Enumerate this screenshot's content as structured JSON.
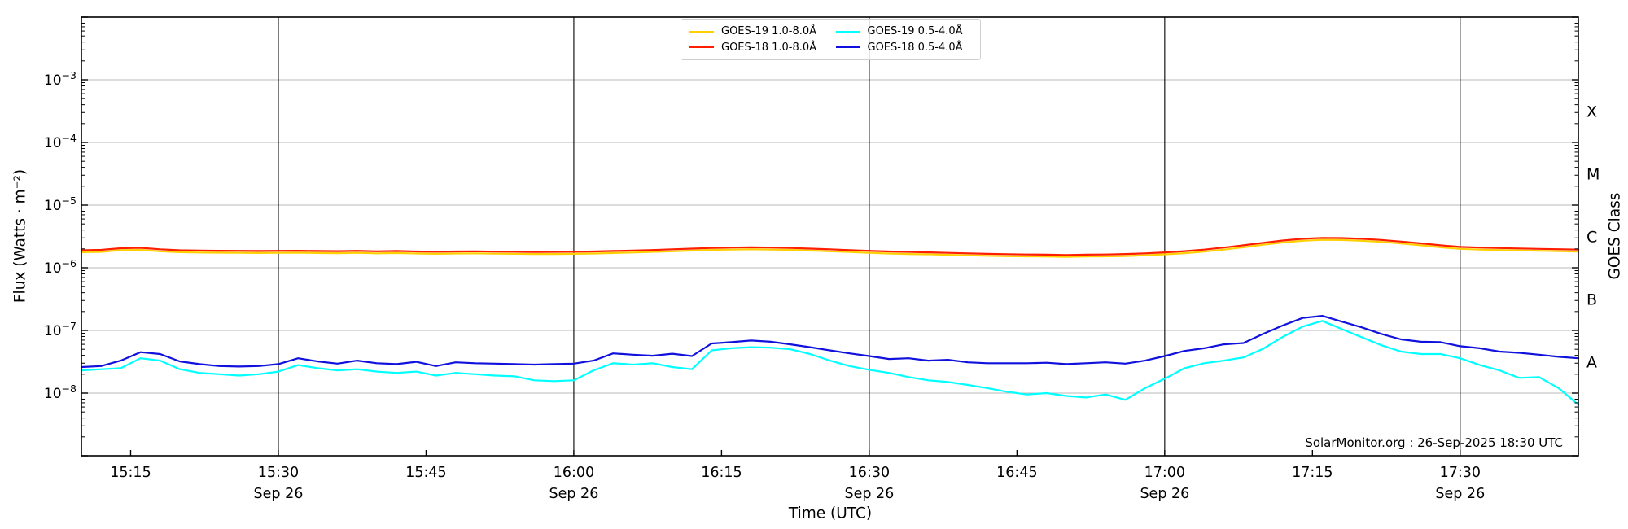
{
  "labels": {
    "x_axis": "Time (UTC)",
    "y_axis_left": "Flux (Watts · m⁻²)",
    "y_axis_right": "GOES Class",
    "annotation": "SolarMonitor.org : 26-Sep-2025 18:30 UTC"
  },
  "legend": {
    "items": [
      {
        "label": "GOES-19 1.0-8.0Å",
        "color": "#ffd000"
      },
      {
        "label": "GOES-18 1.0-8.0Å",
        "color": "#ff1e00"
      },
      {
        "label": "GOES-19 0.5-4.0Å",
        "color": "#00ffff"
      },
      {
        "label": "GOES-18 0.5-4.0Å",
        "color": "#1111dd"
      }
    ]
  },
  "chart_data": {
    "type": "line",
    "x_axis": {
      "label": "Time (UTC)",
      "date": "Sep 26",
      "window_start": "15:10",
      "window_end": "17:42",
      "minutes_origin": "15:10",
      "major_ticks": [
        {
          "minute": 5,
          "label": "15:15",
          "sub_label": null,
          "gridline": false
        },
        {
          "minute": 20,
          "label": "15:30",
          "sub_label": "Sep 26",
          "gridline": true
        },
        {
          "minute": 35,
          "label": "15:45",
          "sub_label": null,
          "gridline": false
        },
        {
          "minute": 50,
          "label": "16:00",
          "sub_label": "Sep 26",
          "gridline": true
        },
        {
          "minute": 65,
          "label": "16:15",
          "sub_label": null,
          "gridline": false
        },
        {
          "minute": 80,
          "label": "16:30",
          "sub_label": "Sep 26",
          "gridline": true
        },
        {
          "minute": 95,
          "label": "16:45",
          "sub_label": null,
          "gridline": false
        },
        {
          "minute": 110,
          "label": "17:00",
          "sub_label": "Sep 26",
          "gridline": true
        },
        {
          "minute": 125,
          "label": "17:15",
          "sub_label": null,
          "gridline": false
        },
        {
          "minute": 140,
          "label": "17:30",
          "sub_label": "Sep 26",
          "gridline": true
        }
      ]
    },
    "y_axis": {
      "label": "Flux (Watts · m⁻²)",
      "scale": "log",
      "min": 1e-09,
      "max": 0.01,
      "labeled_tick_exponents": [
        -3,
        -4,
        -5,
        -6,
        -7,
        -8
      ],
      "grid": true
    },
    "right_axis": {
      "label": "GOES Class",
      "class_bands": [
        {
          "label": "X",
          "mid_exponent": -3.5
        },
        {
          "label": "M",
          "mid_exponent": -4.5
        },
        {
          "label": "C",
          "mid_exponent": -5.5
        },
        {
          "label": "B",
          "mid_exponent": -6.5
        },
        {
          "label": "A",
          "mid_exponent": -7.5
        }
      ]
    },
    "annotation": "SolarMonitor.org : 26-Sep-2025 18:30 UTC",
    "x_minutes": [
      0,
      2,
      4,
      6,
      8,
      10,
      12,
      14,
      16,
      18,
      20,
      22,
      24,
      26,
      28,
      30,
      32,
      34,
      36,
      38,
      40,
      42,
      44,
      46,
      48,
      50,
      52,
      54,
      56,
      58,
      60,
      62,
      64,
      66,
      68,
      70,
      72,
      74,
      76,
      78,
      80,
      82,
      84,
      86,
      88,
      90,
      92,
      94,
      96,
      98,
      100,
      102,
      104,
      106,
      108,
      110,
      112,
      114,
      116,
      118,
      120,
      122,
      124,
      126,
      128,
      130,
      132,
      134,
      136,
      138,
      140,
      142,
      144,
      146,
      148,
      150,
      152
    ],
    "series": [
      {
        "name": "GOES-19 1.0-8.0Å",
        "color": "#ffd000",
        "values_w_m2": [
          1.77e-06,
          1.79e-06,
          1.91e-06,
          1.93e-06,
          1.83e-06,
          1.77e-06,
          1.75e-06,
          1.74e-06,
          1.73e-06,
          1.72e-06,
          1.73e-06,
          1.74e-06,
          1.72e-06,
          1.71e-06,
          1.73e-06,
          1.7e-06,
          1.72e-06,
          1.69e-06,
          1.67e-06,
          1.69e-06,
          1.7e-06,
          1.68e-06,
          1.67e-06,
          1.66e-06,
          1.66e-06,
          1.67e-06,
          1.69e-06,
          1.72e-06,
          1.75e-06,
          1.79e-06,
          1.83e-06,
          1.88e-06,
          1.93e-06,
          1.95e-06,
          1.97e-06,
          1.95e-06,
          1.93e-06,
          1.88e-06,
          1.83e-06,
          1.78e-06,
          1.73e-06,
          1.69e-06,
          1.66e-06,
          1.64e-06,
          1.61e-06,
          1.58e-06,
          1.55e-06,
          1.53e-06,
          1.52e-06,
          1.51e-06,
          1.49e-06,
          1.51e-06,
          1.52e-06,
          1.54e-06,
          1.58e-06,
          1.64e-06,
          1.71e-06,
          1.81e-06,
          1.95e-06,
          2.12e-06,
          2.33e-06,
          2.53e-06,
          2.7e-06,
          2.79e-06,
          2.77e-06,
          2.7e-06,
          2.59e-06,
          2.44e-06,
          2.28e-06,
          2.12e-06,
          2e-06,
          1.95e-06,
          1.92e-06,
          1.89e-06,
          1.86e-06,
          1.84e-06,
          1.81e-06
        ]
      },
      {
        "name": "GOES-18 1.0-8.0Å",
        "color": "#ff1e00",
        "values_w_m2": [
          1.9e-06,
          1.93e-06,
          2.05e-06,
          2.08e-06,
          1.97e-06,
          1.9e-06,
          1.88e-06,
          1.87e-06,
          1.86e-06,
          1.85e-06,
          1.86e-06,
          1.87e-06,
          1.85e-06,
          1.84e-06,
          1.86e-06,
          1.83e-06,
          1.85e-06,
          1.82e-06,
          1.8e-06,
          1.82e-06,
          1.83e-06,
          1.81e-06,
          1.8e-06,
          1.78e-06,
          1.79e-06,
          1.8e-06,
          1.82e-06,
          1.85e-06,
          1.88e-06,
          1.92e-06,
          1.97e-06,
          2.02e-06,
          2.07e-06,
          2.1e-06,
          2.12e-06,
          2.1e-06,
          2.07e-06,
          2.02e-06,
          1.97e-06,
          1.91e-06,
          1.86e-06,
          1.82e-06,
          1.79e-06,
          1.76e-06,
          1.73e-06,
          1.7e-06,
          1.67e-06,
          1.65e-06,
          1.63e-06,
          1.62e-06,
          1.6e-06,
          1.62e-06,
          1.63e-06,
          1.66e-06,
          1.7e-06,
          1.76e-06,
          1.84e-06,
          1.95e-06,
          2.1e-06,
          2.28e-06,
          2.5e-06,
          2.72e-06,
          2.9e-06,
          3e-06,
          2.98e-06,
          2.9e-06,
          2.78e-06,
          2.62e-06,
          2.45e-06,
          2.28e-06,
          2.15e-06,
          2.1e-06,
          2.06e-06,
          2.03e-06,
          2e-06,
          1.98e-06,
          1.95e-06
        ]
      },
      {
        "name": "GOES-19 0.5-4.0Å",
        "color": "#00ffff",
        "values_w_m2": [
          2.3e-08,
          2.4e-08,
          2.5e-08,
          3.6e-08,
          3.3e-08,
          2.4e-08,
          2.1e-08,
          2e-08,
          1.9e-08,
          2e-08,
          2.2e-08,
          2.8e-08,
          2.5e-08,
          2.3e-08,
          2.4e-08,
          2.2e-08,
          2.1e-08,
          2.2e-08,
          1.9e-08,
          2.1e-08,
          2e-08,
          1.9e-08,
          1.85e-08,
          1.6e-08,
          1.55e-08,
          1.6e-08,
          2.3e-08,
          3e-08,
          2.85e-08,
          3e-08,
          2.6e-08,
          2.4e-08,
          4.8e-08,
          5.2e-08,
          5.4e-08,
          5.3e-08,
          5e-08,
          4.2e-08,
          3.3e-08,
          2.7e-08,
          2.35e-08,
          2.1e-08,
          1.8e-08,
          1.6e-08,
          1.5e-08,
          1.35e-08,
          1.2e-08,
          1.05e-08,
          9.5e-09,
          1e-08,
          9e-09,
          8.5e-09,
          9.5e-09,
          7.8e-09,
          1.2e-08,
          1.7e-08,
          2.5e-08,
          3e-08,
          3.3e-08,
          3.7e-08,
          5.1e-08,
          7.9e-08,
          1.15e-07,
          1.42e-07,
          1.05e-07,
          7.8e-08,
          5.8e-08,
          4.6e-08,
          4.2e-08,
          4.2e-08,
          3.6e-08,
          2.8e-08,
          2.3e-08,
          1.75e-08,
          1.8e-08,
          1.2e-08,
          6.5e-09
        ]
      },
      {
        "name": "GOES-18 0.5-4.0Å",
        "color": "#1111dd",
        "values_w_m2": [
          2.6e-08,
          2.7e-08,
          3.3e-08,
          4.5e-08,
          4.2e-08,
          3.2e-08,
          2.9e-08,
          2.7e-08,
          2.65e-08,
          2.7e-08,
          2.9e-08,
          3.6e-08,
          3.2e-08,
          2.95e-08,
          3.3e-08,
          3e-08,
          2.9e-08,
          3.15e-08,
          2.7e-08,
          3.1e-08,
          3e-08,
          2.95e-08,
          2.9e-08,
          2.85e-08,
          2.9e-08,
          2.95e-08,
          3.3e-08,
          4.3e-08,
          4.1e-08,
          3.95e-08,
          4.25e-08,
          3.9e-08,
          6.2e-08,
          6.5e-08,
          6.9e-08,
          6.6e-08,
          6e-08,
          5.4e-08,
          4.8e-08,
          4.3e-08,
          3.9e-08,
          3.5e-08,
          3.6e-08,
          3.3e-08,
          3.4e-08,
          3.1e-08,
          3e-08,
          3e-08,
          3e-08,
          3.05e-08,
          2.9e-08,
          3e-08,
          3.1e-08,
          2.95e-08,
          3.3e-08,
          3.9e-08,
          4.7e-08,
          5.2e-08,
          6e-08,
          6.3e-08,
          8.8e-08,
          1.2e-07,
          1.58e-07,
          1.71e-07,
          1.38e-07,
          1.12e-07,
          8.8e-08,
          7.2e-08,
          6.6e-08,
          6.5e-08,
          5.6e-08,
          5.2e-08,
          4.6e-08,
          4.4e-08,
          4.1e-08,
          3.8e-08,
          3.6e-08
        ]
      }
    ],
    "style": {
      "h_grid_color": "#b9b9b9",
      "v_grid_color": "#000000",
      "spine_color": "#000000",
      "background": "#ffffff"
    }
  }
}
